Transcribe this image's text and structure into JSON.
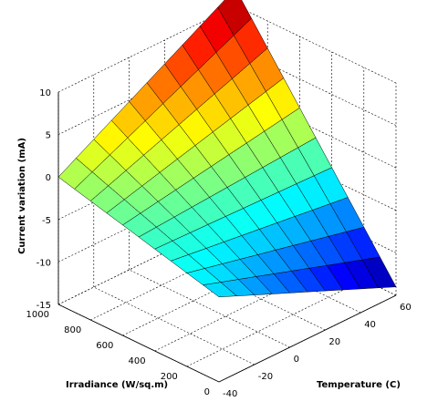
{
  "chart_data": {
    "type": "surface3d",
    "colormap": "jet",
    "grid": true,
    "x_axis": {
      "label": "Temperature (C)",
      "range": [
        -40,
        60
      ],
      "ticks": [
        -40,
        -20,
        0,
        20,
        40,
        60
      ],
      "tick_labels": [
        "-40",
        "-20",
        "0",
        "20",
        "40",
        "60"
      ]
    },
    "y_axis": {
      "label": "Irradiance (W/sq.m)",
      "range": [
        0,
        1000
      ],
      "ticks": [
        0,
        200,
        400,
        600,
        800,
        1000
      ],
      "tick_labels": [
        "0",
        "200",
        "400",
        "600",
        "800",
        "1000"
      ]
    },
    "z_axis": {
      "label": "Current variation (mA)",
      "range": [
        -15,
        10
      ],
      "ticks": [
        -15,
        -10,
        -5,
        0,
        5,
        10
      ],
      "tick_labels": [
        "-15",
        "-10",
        "-5",
        "0",
        "5",
        "10"
      ]
    },
    "surface": {
      "x": [
        -40,
        -30,
        -20,
        -10,
        0,
        10,
        20,
        30,
        40,
        50,
        60
      ],
      "y": [
        0,
        100,
        200,
        300,
        400,
        500,
        600,
        700,
        800,
        900,
        1000
      ],
      "corner_z": {
        "x_min_y_min": -5,
        "x_min_y_max": 0,
        "x_max_y_min": -14,
        "x_max_y_max": 12
      }
    }
  }
}
